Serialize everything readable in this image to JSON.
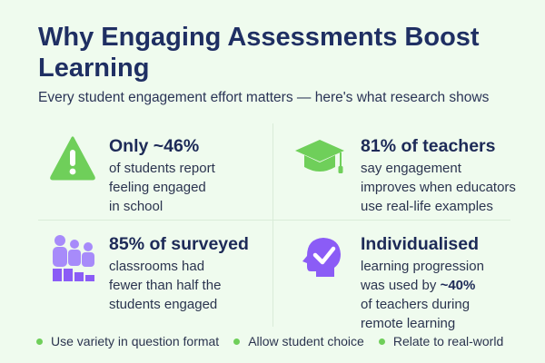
{
  "header": {
    "title": "Why Engaging Assessments Boost Learning",
    "subtitle": "Every student engagement effort matters — here's what research shows"
  },
  "stats": [
    {
      "icon": "warning-icon",
      "headline": "Only ~46%",
      "lines": [
        "of students report",
        "feeling engaged",
        "in school"
      ]
    },
    {
      "icon": "graduation-cap-icon",
      "headline": "81% of teachers",
      "lines": [
        "say engagement",
        "improves when educators",
        "use real-life examples"
      ]
    },
    {
      "icon": "people-bar-icon",
      "headline": "85% of surveyed",
      "lines": [
        "classrooms had",
        "fewer than half the",
        "students engaged"
      ]
    },
    {
      "icon": "head-checkmark-icon",
      "headline": "Individualised",
      "lines": [
        "learning progression",
        "was used by",
        "~40%",
        "of teachers during",
        "remote learning"
      ]
    }
  ],
  "tips": [
    "Use variety in question format",
    "Allow student choice",
    "Relate to real-world"
  ],
  "colors": {
    "background": "#effbee",
    "title": "#1f2f63",
    "accent_green": "#6fcf5a",
    "accent_purple": "#8b5cf6"
  }
}
